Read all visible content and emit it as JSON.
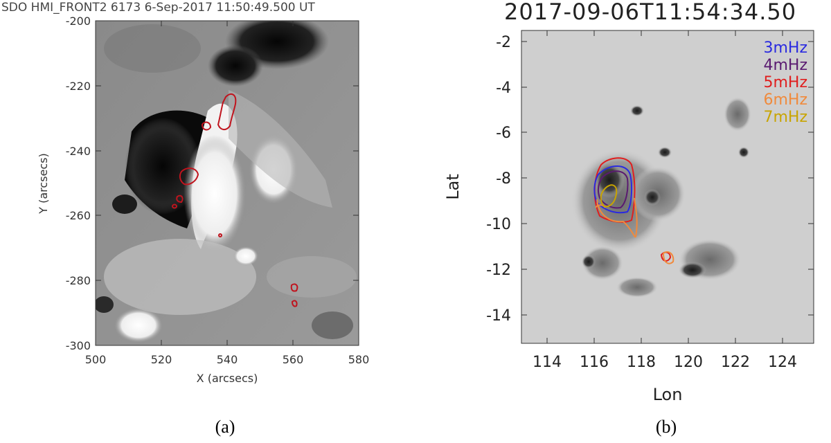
{
  "panel_a": {
    "title": "SDO HMI_FRONT2 6173   6-Sep-2017 11:50:49.500 UT",
    "xlabel": "X (arcsecs)",
    "ylabel": "Y (arcsecs)",
    "xticks": [
      "500",
      "520",
      "540",
      "560",
      "580"
    ],
    "yticks": [
      "-200",
      "-220",
      "-240",
      "-260",
      "-280",
      "-300"
    ],
    "caption": "(a)",
    "contour_color": "#c0141e"
  },
  "panel_b": {
    "title": "2017-09-06T11:54:34.50",
    "xlabel": "Lon",
    "ylabel": "Lat",
    "xticks": [
      "114",
      "116",
      "118",
      "120",
      "122",
      "124"
    ],
    "yticks": [
      "-2",
      "-4",
      "-6",
      "-8",
      "-10",
      "-12",
      "-14"
    ],
    "caption": "(b)",
    "legend": [
      {
        "label": "3mHz",
        "color": "#2a2ae0"
      },
      {
        "label": "4mHz",
        "color": "#5a1a70"
      },
      {
        "label": "5mHz",
        "color": "#e01e1e"
      },
      {
        "label": "6mHz",
        "color": "#f08a3c"
      },
      {
        "label": "7mHz",
        "color": "#c8a400"
      }
    ]
  }
}
